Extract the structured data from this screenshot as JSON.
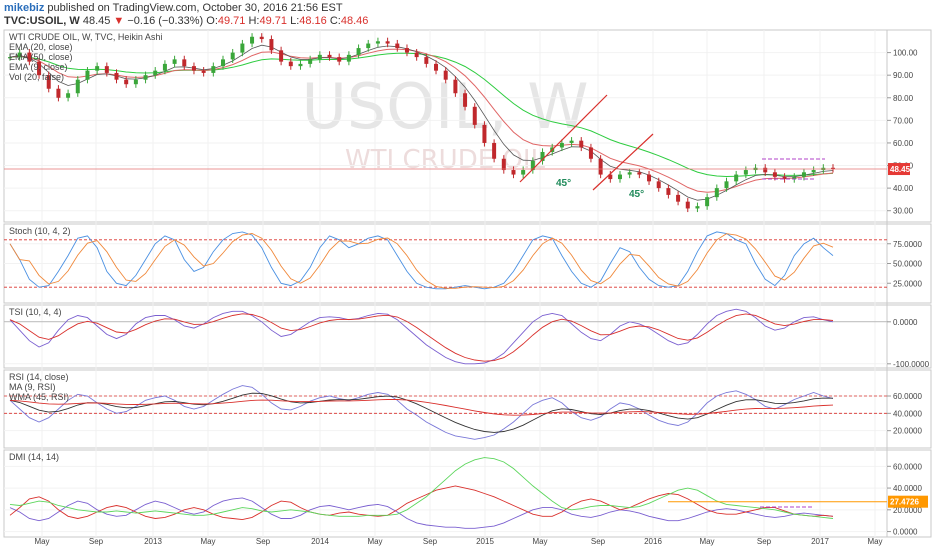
{
  "header": {
    "author": "mikebiz",
    "published": " published on TradingView.com, October 30, 2016 21:56 EST",
    "symbol": "TVC:USOIL, W ",
    "last": "48.45 ",
    "change_arrow": "▼",
    "change": " −0.16 (−0.33%) ",
    "open_label": "O:",
    "open": "49.71",
    "high_label": " H:",
    "high": "49.71",
    "low_label": " L:",
    "low": "48.16",
    "close_label": " C:",
    "close": "48.46"
  },
  "chart_data": {
    "type": "candlestick",
    "colors": {
      "up": "#3aa63a",
      "down": "#c0282c",
      "accent": "#ff9800",
      "price_badge": "#e53935"
    },
    "watermark": {
      "symbol": "USOIL, W",
      "name": "WTI CRUDE OIL"
    },
    "x_labels": [
      "May",
      "Sep",
      "2013",
      "May",
      "Sep",
      "2014",
      "May",
      "Sep",
      "2015",
      "May",
      "Sep",
      "2016",
      "May",
      "Sep",
      "2017",
      "May"
    ],
    "panes": [
      {
        "id": "price",
        "labels": [
          "WTI CRUDE OIL, W, TVC, Heikin Ashi",
          "EMA (20, close)",
          "EMA (50, close)",
          "EMA (9, close)",
          "Vol (20, false)"
        ],
        "ylim": [
          25,
          110
        ],
        "ticks": [
          "100.00",
          "90.00",
          "80.00",
          "70.00",
          "60.00",
          "50.00",
          "40.00",
          "30.00"
        ],
        "last_price": "48.45",
        "last_value": 48.45,
        "annotations": [
          "45°",
          "45°"
        ]
      },
      {
        "id": "stoch",
        "labels": [
          "Stoch (10, 4, 2)"
        ],
        "ylim": [
          0,
          100
        ],
        "ticks": [
          "75.0000",
          "50.0000",
          "25.0000"
        ],
        "bands": [
          80,
          20
        ]
      },
      {
        "id": "tsi",
        "labels": [
          "TSI (10, 4, 4)"
        ],
        "ylim": [
          -110,
          40
        ],
        "ticks": [
          "0.0000",
          "-100.0000"
        ]
      },
      {
        "id": "rsi",
        "labels": [
          "RSI (14, close)",
          "MA (9, RSI)",
          "WMA (45, RSI)"
        ],
        "ylim": [
          0,
          90
        ],
        "ticks": [
          "60.0000",
          "40.0000",
          "20.0000"
        ],
        "bands": [
          60,
          40
        ]
      },
      {
        "id": "dmi",
        "labels": [
          "DMI (14, 14)"
        ],
        "ylim": [
          -5,
          75
        ],
        "ticks": [
          "60.0000",
          "40.0000",
          "20.0000",
          "0.0000"
        ],
        "last_badge": "27.4726",
        "badge_value": 27.47
      }
    ],
    "price_series": [
      98,
      100,
      96,
      90,
      84,
      80,
      82,
      88,
      92,
      94,
      91,
      88,
      86,
      88,
      90,
      92,
      95,
      97,
      94,
      92,
      91,
      94,
      97,
      100,
      104,
      107,
      106,
      101,
      96,
      94,
      95,
      97,
      99,
      98,
      96,
      99,
      102,
      104,
      105,
      104,
      102,
      100,
      98,
      95,
      92,
      88,
      82,
      76,
      68,
      60,
      53,
      48,
      46,
      48,
      52,
      56,
      58,
      60,
      61,
      58,
      53,
      46,
      44,
      46,
      47,
      46,
      43,
      40,
      37,
      34,
      31,
      32,
      36,
      40,
      43,
      46,
      48,
      49,
      47,
      45,
      44,
      45,
      47,
      48,
      49,
      48.5
    ],
    "stoch_k": [
      75,
      55,
      30,
      20,
      22,
      40,
      60,
      82,
      85,
      70,
      40,
      25,
      22,
      35,
      55,
      75,
      85,
      80,
      55,
      40,
      45,
      65,
      80,
      88,
      90,
      86,
      70,
      45,
      25,
      22,
      28,
      45,
      70,
      85,
      80,
      70,
      75,
      82,
      85,
      80,
      60,
      40,
      25,
      20,
      18,
      18,
      20,
      22,
      20,
      18,
      20,
      25,
      40,
      60,
      80,
      85,
      82,
      60,
      40,
      25,
      20,
      28,
      50,
      70,
      65,
      45,
      30,
      22,
      20,
      22,
      40,
      65,
      85,
      90,
      88,
      80,
      75,
      50,
      30,
      22,
      35,
      60,
      75,
      82,
      70,
      60
    ],
    "tsi": [
      5,
      -20,
      -45,
      -60,
      -50,
      -20,
      5,
      15,
      10,
      -10,
      -30,
      -40,
      -30,
      -5,
      10,
      15,
      15,
      5,
      -10,
      -15,
      -5,
      10,
      20,
      25,
      25,
      15,
      0,
      -20,
      -35,
      -30,
      -15,
      0,
      10,
      12,
      10,
      5,
      8,
      15,
      20,
      18,
      5,
      -15,
      -35,
      -55,
      -70,
      -85,
      -95,
      -100,
      -100,
      -98,
      -90,
      -75,
      -50,
      -25,
      0,
      15,
      20,
      15,
      -5,
      -25,
      -40,
      -45,
      -30,
      -10,
      0,
      -5,
      -15,
      -30,
      -45,
      -55,
      -50,
      -30,
      -5,
      15,
      25,
      30,
      25,
      10,
      -10,
      -20,
      -15,
      0,
      10,
      12,
      5,
      0
    ],
    "rsi": [
      55,
      45,
      35,
      30,
      35,
      45,
      55,
      62,
      60,
      52,
      45,
      40,
      42,
      48,
      55,
      58,
      60,
      55,
      48,
      45,
      48,
      55,
      62,
      68,
      72,
      70,
      62,
      52,
      45,
      44,
      48,
      54,
      58,
      60,
      57,
      55,
      58,
      62,
      64,
      62,
      55,
      45,
      38,
      30,
      24,
      18,
      14,
      12,
      10,
      12,
      15,
      22,
      30,
      40,
      50,
      55,
      58,
      52,
      42,
      35,
      32,
      36,
      45,
      52,
      50,
      45,
      38,
      32,
      28,
      26,
      30,
      40,
      52,
      60,
      64,
      66,
      62,
      56,
      48,
      45,
      50,
      56,
      60,
      64,
      60,
      57
    ],
    "dmi_plus": [
      22,
      18,
      12,
      10,
      12,
      18,
      24,
      28,
      26,
      20,
      16,
      14,
      15,
      20,
      25,
      28,
      26,
      22,
      18,
      16,
      18,
      24,
      28,
      30,
      31,
      28,
      22,
      16,
      12,
      12,
      15,
      20,
      23,
      24,
      22,
      20,
      22,
      24,
      25,
      23,
      18,
      12,
      8,
      6,
      5,
      4,
      4,
      3,
      3,
      4,
      5,
      8,
      12,
      16,
      20,
      22,
      22,
      20,
      16,
      14,
      13,
      15,
      18,
      20,
      19,
      17,
      14,
      12,
      10,
      10,
      12,
      15,
      18,
      20,
      21,
      20,
      18,
      16,
      14,
      13,
      14,
      16,
      17,
      16,
      15,
      14
    ],
    "dmi_minus": [
      15,
      22,
      30,
      32,
      28,
      20,
      14,
      12,
      14,
      18,
      22,
      24,
      22,
      18,
      14,
      12,
      13,
      16,
      20,
      22,
      20,
      16,
      13,
      12,
      11,
      13,
      18,
      24,
      28,
      27,
      22,
      18,
      16,
      15,
      17,
      18,
      16,
      15,
      14,
      15,
      20,
      26,
      30,
      34,
      38,
      40,
      42,
      40,
      38,
      35,
      32,
      28,
      24,
      20,
      16,
      14,
      14,
      18,
      24,
      28,
      30,
      28,
      24,
      20,
      22,
      26,
      30,
      33,
      35,
      34,
      30,
      25,
      20,
      17,
      16,
      16,
      18,
      20,
      22,
      22,
      19,
      16,
      15,
      14,
      15,
      14
    ],
    "adx": [
      25,
      24,
      26,
      28,
      27,
      24,
      22,
      20,
      19,
      18,
      18,
      19,
      18,
      17,
      18,
      19,
      18,
      17,
      16,
      15,
      15,
      16,
      18,
      20,
      22,
      21,
      19,
      18,
      19,
      20,
      19,
      18,
      16,
      15,
      14,
      14,
      14,
      15,
      15,
      15,
      16,
      20,
      26,
      32,
      40,
      48,
      56,
      62,
      66,
      68,
      67,
      64,
      58,
      50,
      42,
      35,
      28,
      22,
      20,
      21,
      23,
      24,
      24,
      23,
      22,
      23,
      26,
      30,
      34,
      38,
      40,
      38,
      33,
      28,
      25,
      24,
      23,
      22,
      21,
      20,
      18,
      16,
      15,
      14,
      13,
      12
    ]
  }
}
